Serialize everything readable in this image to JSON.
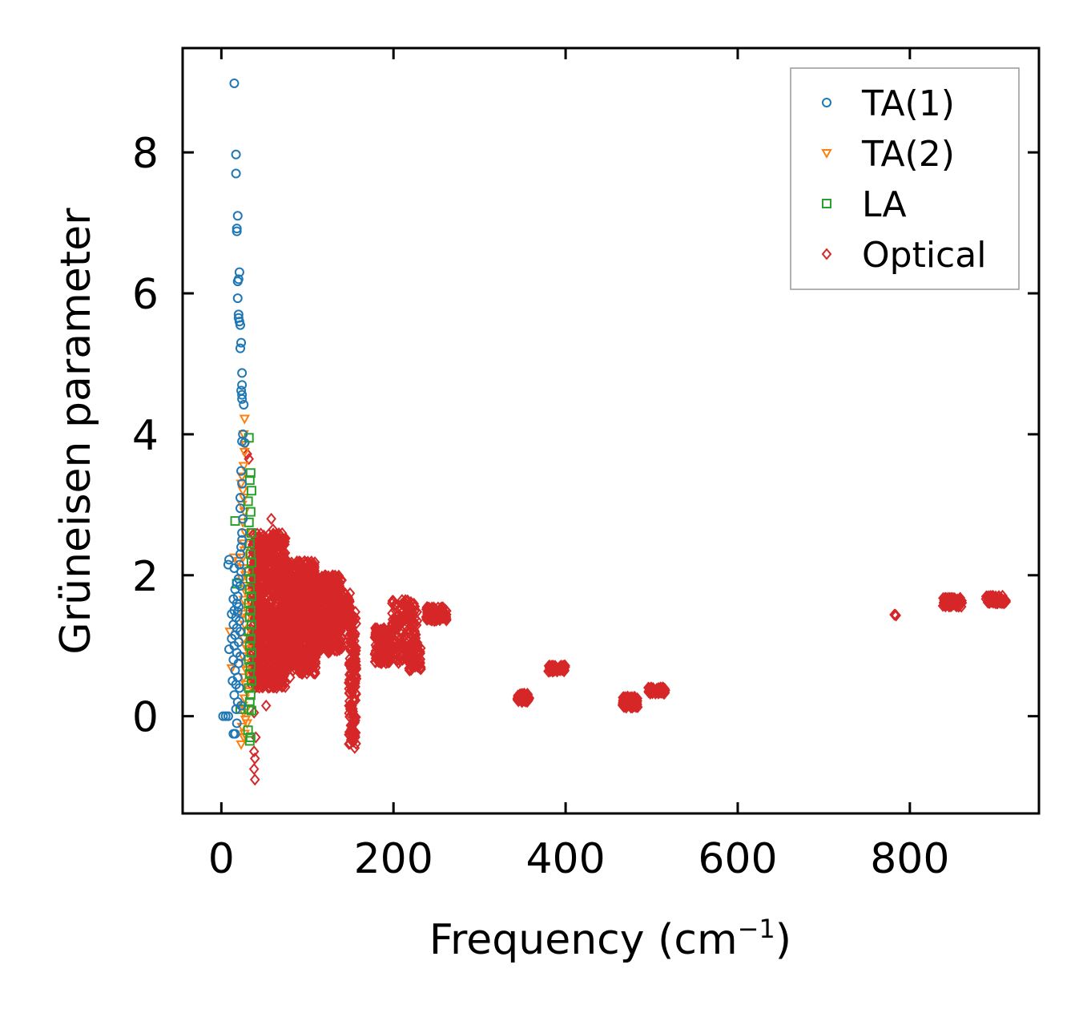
{
  "chart_data": {
    "type": "scatter",
    "title": "",
    "xlabel": "Frequency (cm",
    "xlabel_sup": "−1",
    "xlabel_close": ")",
    "ylabel": "Grüneisen parameter",
    "xlim": [
      -45,
      950
    ],
    "ylim": [
      -1.38,
      9.48
    ],
    "x_ticks": [
      0,
      200,
      400,
      600,
      800
    ],
    "x_tick_labels": [
      "0",
      "200",
      "400",
      "600",
      "800"
    ],
    "y_ticks": [
      0,
      2,
      4,
      6,
      8
    ],
    "y_tick_labels": [
      "0",
      "2",
      "4",
      "6",
      "8"
    ],
    "grid": false,
    "legend_position": "top-right",
    "series": [
      {
        "name": "TA(1)",
        "marker": "circle",
        "color": "#1f77b4",
        "points": [
          [
            15,
            8.98
          ],
          [
            17,
            7.97
          ],
          [
            17,
            7.7
          ],
          [
            19,
            7.1
          ],
          [
            18,
            6.92
          ],
          [
            18,
            6.88
          ],
          [
            21,
            6.3
          ],
          [
            20,
            6.2
          ],
          [
            19,
            6.17
          ],
          [
            19,
            5.93
          ],
          [
            20,
            5.7
          ],
          [
            20,
            5.65
          ],
          [
            21,
            5.6
          ],
          [
            22,
            5.55
          ],
          [
            23,
            5.3
          ],
          [
            22,
            5.22
          ],
          [
            24,
            4.87
          ],
          [
            24,
            4.7
          ],
          [
            23,
            4.62
          ],
          [
            24,
            4.56
          ],
          [
            24,
            4.5
          ],
          [
            26,
            4.42
          ],
          [
            25,
            4.0
          ],
          [
            24,
            3.9
          ],
          [
            27,
            3.88
          ],
          [
            23,
            3.48
          ],
          [
            24,
            3.3
          ],
          [
            22,
            3.1
          ],
          [
            22,
            2.95
          ],
          [
            25,
            2.8
          ],
          [
            24,
            2.6
          ],
          [
            24,
            2.5
          ],
          [
            23,
            2.4
          ],
          [
            22,
            2.3
          ],
          [
            9,
            2.22
          ],
          [
            8,
            2.15
          ],
          [
            15,
            2.1
          ],
          [
            21,
            2.15
          ],
          [
            23,
            2.05
          ],
          [
            20,
            1.95
          ],
          [
            18,
            1.9
          ],
          [
            22,
            1.85
          ],
          [
            16,
            1.8
          ],
          [
            19,
            1.7
          ],
          [
            14,
            1.66
          ],
          [
            18,
            1.6
          ],
          [
            20,
            1.55
          ],
          [
            15,
            1.5
          ],
          [
            19,
            1.48
          ],
          [
            12,
            1.45
          ],
          [
            17,
            1.4
          ],
          [
            21,
            1.35
          ],
          [
            14,
            1.3
          ],
          [
            18,
            1.25
          ],
          [
            22,
            1.2
          ],
          [
            16,
            1.15
          ],
          [
            12,
            1.1
          ],
          [
            20,
            1.05
          ],
          [
            15,
            1.0
          ],
          [
            9,
            0.95
          ],
          [
            18,
            0.9
          ],
          [
            22,
            0.85
          ],
          [
            14,
            0.8
          ],
          [
            20,
            0.75
          ],
          [
            16,
            0.65
          ],
          [
            19,
            0.55
          ],
          [
            13,
            0.5
          ],
          [
            17,
            0.45
          ],
          [
            21,
            0.4
          ],
          [
            15,
            0.3
          ],
          [
            19,
            0.2
          ],
          [
            23,
            0.15
          ],
          [
            17,
            0.1
          ],
          [
            5,
            0.0
          ],
          [
            8,
            0.0
          ],
          [
            2,
            0.0
          ],
          [
            14,
            -0.25
          ],
          [
            16,
            -0.25
          ],
          [
            18,
            -0.1
          ]
        ]
      },
      {
        "name": "TA(2)",
        "marker": "triangle-down",
        "color": "#ff7f0e",
        "points": [
          [
            27,
            4.22
          ],
          [
            26,
            4.0
          ],
          [
            28,
            3.85
          ],
          [
            27,
            3.75
          ],
          [
            26,
            3.55
          ],
          [
            24,
            3.4
          ],
          [
            23,
            3.3
          ],
          [
            25,
            3.2
          ],
          [
            26,
            3.1
          ],
          [
            24,
            3.0
          ],
          [
            27,
            2.9
          ],
          [
            25,
            2.75
          ],
          [
            28,
            2.6
          ],
          [
            26,
            2.45
          ],
          [
            27,
            2.35
          ],
          [
            25,
            2.25
          ],
          [
            15,
            2.25
          ],
          [
            20,
            2.2
          ],
          [
            26,
            2.1
          ],
          [
            28,
            2.0
          ],
          [
            24,
            1.95
          ],
          [
            27,
            1.85
          ],
          [
            29,
            1.75
          ],
          [
            26,
            1.65
          ],
          [
            28,
            1.55
          ],
          [
            25,
            1.45
          ],
          [
            30,
            1.4
          ],
          [
            27,
            1.3
          ],
          [
            29,
            1.2
          ],
          [
            10,
            1.2
          ],
          [
            26,
            1.1
          ],
          [
            28,
            1.0
          ],
          [
            30,
            0.95
          ],
          [
            25,
            0.85
          ],
          [
            27,
            0.75
          ],
          [
            12,
            0.68
          ],
          [
            29,
            0.65
          ],
          [
            26,
            0.55
          ],
          [
            28,
            0.45
          ],
          [
            30,
            0.35
          ],
          [
            27,
            0.25
          ],
          [
            25,
            0.15
          ],
          [
            29,
            0.1
          ],
          [
            26,
            0.05
          ],
          [
            28,
            -0.05
          ],
          [
            24,
            -0.15
          ],
          [
            26,
            -0.3
          ],
          [
            23,
            -0.4
          ],
          [
            27,
            -0.25
          ],
          [
            30,
            -0.1
          ]
        ]
      },
      {
        "name": "LA",
        "marker": "square",
        "color": "#2ca02c",
        "points": [
          [
            32,
            3.95
          ],
          [
            34,
            3.45
          ],
          [
            33,
            3.35
          ],
          [
            35,
            3.2
          ],
          [
            31,
            3.05
          ],
          [
            34,
            2.9
          ],
          [
            32,
            2.75
          ],
          [
            16,
            2.77
          ],
          [
            35,
            2.6
          ],
          [
            33,
            2.45
          ],
          [
            34,
            2.3
          ],
          [
            35,
            2.18
          ],
          [
            32,
            2.05
          ],
          [
            34,
            1.95
          ],
          [
            18,
            1.88
          ],
          [
            33,
            1.8
          ],
          [
            35,
            1.7
          ],
          [
            32,
            1.6
          ],
          [
            34,
            1.5
          ],
          [
            33,
            1.4
          ],
          [
            35,
            1.3
          ],
          [
            32,
            1.2
          ],
          [
            34,
            1.1
          ],
          [
            33,
            1.0
          ],
          [
            35,
            0.9
          ],
          [
            32,
            0.8
          ],
          [
            34,
            0.7
          ],
          [
            33,
            0.6
          ],
          [
            35,
            0.5
          ],
          [
            32,
            0.4
          ],
          [
            34,
            0.3
          ],
          [
            33,
            0.2
          ],
          [
            35,
            0.08
          ],
          [
            32,
            0.1
          ],
          [
            22,
            0.1
          ],
          [
            34,
            -0.3
          ],
          [
            33,
            -0.35
          ],
          [
            31,
            -0.2
          ]
        ]
      },
      {
        "name": "Optical",
        "marker": "diamond",
        "color": "#d62728",
        "points": [
          [
            30,
            3.72
          ],
          [
            32,
            3.65
          ],
          [
            58,
            2.8
          ],
          [
            60,
            2.65
          ],
          [
            45,
            2.5
          ],
          [
            38,
            -0.5
          ],
          [
            39,
            -0.6
          ],
          [
            38,
            -0.75
          ],
          [
            39,
            -0.9
          ],
          [
            40,
            -0.3
          ],
          [
            52,
            0.15
          ],
          [
            38,
            0.05
          ],
          [
            80,
            0.55
          ],
          [
            140,
            1.0
          ],
          [
            155,
            -0.45
          ],
          [
            154,
            -0.35
          ],
          [
            153,
            -0.2
          ],
          [
            782,
            1.44
          ],
          [
            783,
            1.44
          ],
          [
            784,
            1.43
          ]
        ],
        "clusters": [
          {
            "x_range": [
              35,
              75
            ],
            "y_range": [
              0.4,
              2.6
            ],
            "count": 900
          },
          {
            "x_range": [
              70,
              110
            ],
            "y_range": [
              0.6,
              2.2
            ],
            "count": 700
          },
          {
            "x_range": [
              100,
              140
            ],
            "y_range": [
              0.9,
              2.0
            ],
            "count": 500
          },
          {
            "x_range": [
              140,
              150
            ],
            "y_range": [
              1.3,
              1.75
            ],
            "count": 80
          },
          {
            "x_range": [
              148,
              157
            ],
            "y_range": [
              -0.4,
              1.5
            ],
            "count": 160
          },
          {
            "x_range": [
              178,
              198
            ],
            "y_range": [
              0.75,
              1.25
            ],
            "count": 140
          },
          {
            "x_range": [
              198,
              228
            ],
            "y_range": [
              0.75,
              1.65
            ],
            "count": 160
          },
          {
            "x_range": [
              218,
              232
            ],
            "y_range": [
              0.65,
              1.05
            ],
            "count": 60
          },
          {
            "x_range": [
              238,
              262
            ],
            "y_range": [
              1.35,
              1.55
            ],
            "count": 90
          },
          {
            "x_range": [
              344,
              358
            ],
            "y_range": [
              0.2,
              0.32
            ],
            "count": 60
          },
          {
            "x_range": [
              378,
              400
            ],
            "y_range": [
              0.63,
              0.72
            ],
            "count": 70
          },
          {
            "x_range": [
              466,
              484
            ],
            "y_range": [
              0.12,
              0.28
            ],
            "count": 70
          },
          {
            "x_range": [
              496,
              516
            ],
            "y_range": [
              0.32,
              0.41
            ],
            "count": 60
          },
          {
            "x_range": [
              838,
              862
            ],
            "y_range": [
              1.55,
              1.68
            ],
            "count": 70
          },
          {
            "x_range": [
              888,
              912
            ],
            "y_range": [
              1.6,
              1.71
            ],
            "count": 70
          }
        ]
      }
    ]
  }
}
